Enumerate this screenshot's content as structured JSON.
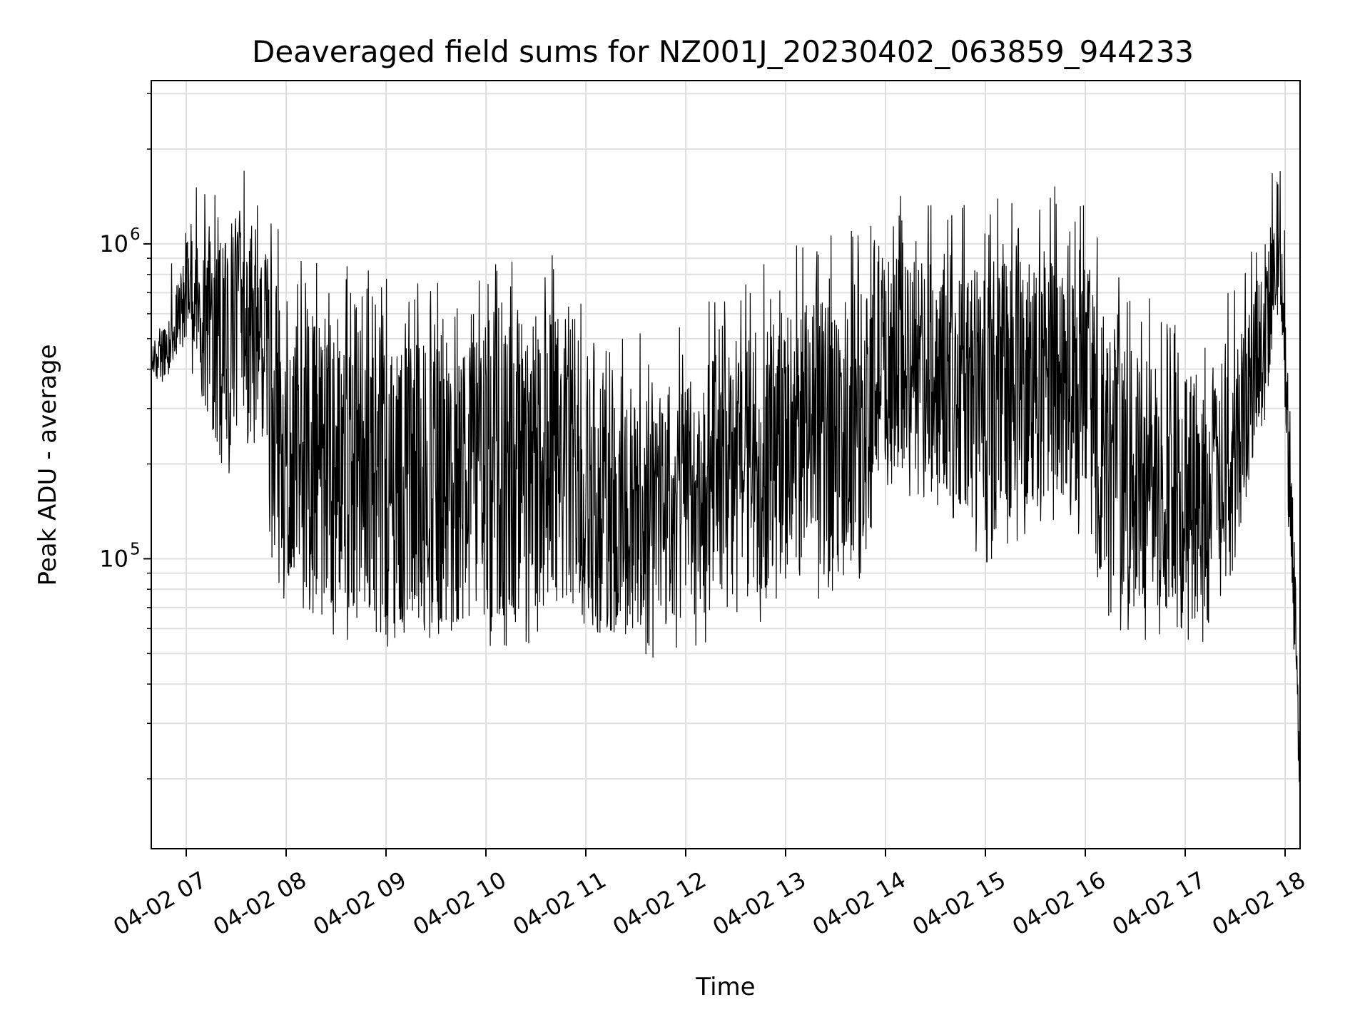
{
  "chart_data": {
    "type": "line",
    "title": "Deaveraged field sums for NZ001J_20230402_063859_944233",
    "xlabel": "Time",
    "ylabel": "Peak ADU - average",
    "y_scale": "log",
    "x_range": [
      "2023-04-02 06:39",
      "2023-04-02 18:09"
    ],
    "y_range": [
      12000,
      3300000
    ],
    "grid": true,
    "legend": "none",
    "line_color": "#000000",
    "x_tick_labels": [
      "04-02 07",
      "04-02 08",
      "04-02 09",
      "04-02 10",
      "04-02 11",
      "04-02 12",
      "04-02 13",
      "04-02 14",
      "04-02 15",
      "04-02 16",
      "04-02 17",
      "04-02 18"
    ],
    "y_major_ticks": [
      {
        "value": 100000,
        "base": "10",
        "exp": "5"
      },
      {
        "value": 1000000,
        "base": "10",
        "exp": "6"
      }
    ],
    "series": [
      {
        "note": "approximate envelope of the dense trace (hour of day vs. Peak ADU - average)",
        "x": [
          6.65,
          6.8,
          6.95,
          7.0,
          7.1,
          7.2,
          7.35,
          7.5,
          7.65,
          7.75,
          7.85,
          8.0,
          8.3,
          8.6,
          9.0,
          9.5,
          10.0,
          10.5,
          10.9,
          11.0,
          11.3,
          11.6,
          12.0,
          12.4,
          12.8,
          13.2,
          13.6,
          13.85,
          13.88,
          14.0,
          14.3,
          14.6,
          15.0,
          15.4,
          15.8,
          16.0,
          16.2,
          16.5,
          17.0,
          17.3,
          17.6,
          17.75,
          17.85,
          17.95,
          18.0,
          18.05,
          18.1,
          18.15
        ],
        "y_low": [
          380000,
          360000,
          480000,
          520000,
          450000,
          300000,
          200000,
          220000,
          250000,
          260000,
          120000,
          90000,
          75000,
          70000,
          65000,
          62000,
          65000,
          68000,
          75000,
          62000,
          58000,
          60000,
          65000,
          70000,
          80000,
          90000,
          95000,
          110000,
          180000,
          200000,
          190000,
          170000,
          120000,
          140000,
          160000,
          140000,
          80000,
          70000,
          65000,
          63000,
          150000,
          300000,
          400000,
          700000,
          300000,
          120000,
          50000,
          16000
        ],
        "y_high": [
          480000,
          550000,
          800000,
          1200000,
          1000000,
          900000,
          1100000,
          1300000,
          1200000,
          1100000,
          800000,
          650000,
          600000,
          550000,
          500000,
          480000,
          550000,
          600000,
          600000,
          400000,
          350000,
          330000,
          380000,
          450000,
          550000,
          650000,
          700000,
          700000,
          1100000,
          900000,
          900000,
          850000,
          900000,
          950000,
          1000000,
          950000,
          550000,
          450000,
          400000,
          380000,
          600000,
          900000,
          1200000,
          1200000,
          900000,
          300000,
          100000,
          20000
        ]
      }
    ]
  }
}
